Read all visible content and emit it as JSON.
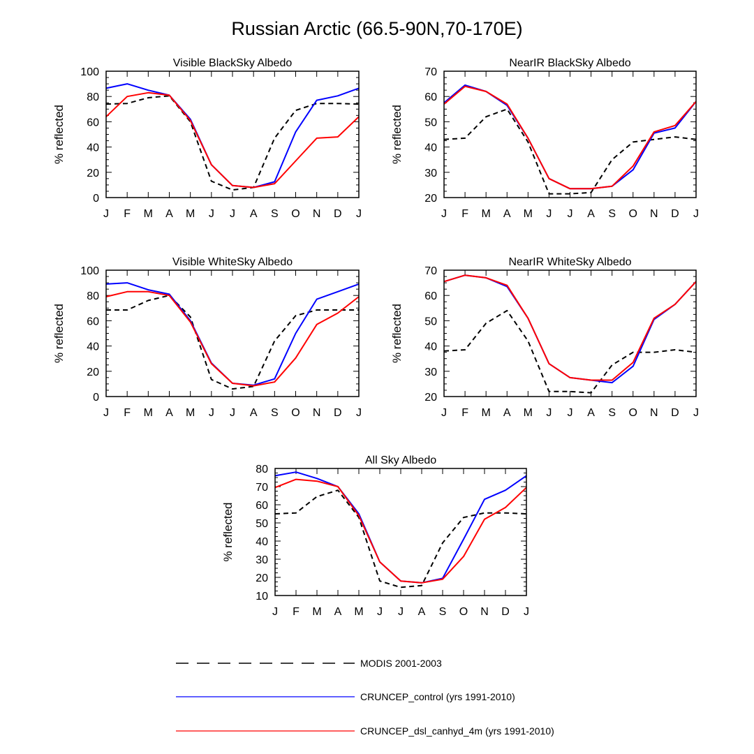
{
  "figure": {
    "title": "Russian Arctic (66.5-90N,70-170E)"
  },
  "legend": [
    {
      "label": "MODIS 2001-2003",
      "color": "#000000",
      "dash": true
    },
    {
      "label": "CRUNCEP_control (yrs 1991-2010)",
      "color": "#0000ff",
      "dash": false
    },
    {
      "label": "CRUNCEP_dsl_canhyd_4m (yrs 1991-2010)",
      "color": "#ff0000",
      "dash": false
    }
  ],
  "chart_data": [
    {
      "type": "line",
      "title": "Visible BlackSky Albedo",
      "ylabel": "% reflected",
      "categories": [
        "J",
        "F",
        "M",
        "A",
        "M",
        "J",
        "J",
        "A",
        "S",
        "O",
        "N",
        "D",
        "J"
      ],
      "ylim": [
        0,
        100
      ],
      "yticks": [
        0,
        20,
        40,
        60,
        80,
        100
      ],
      "series": [
        {
          "name": "MODIS 2001-2003",
          "values": [
            74,
            74.5,
            79,
            80.5,
            60,
            13,
            6,
            8,
            47,
            69,
            74.5,
            74.5,
            74
          ]
        },
        {
          "name": "CRUNCEP_control (yrs 1991-2010)",
          "values": [
            86.5,
            90,
            85,
            81,
            62,
            26,
            9.5,
            8,
            12.5,
            52,
            77,
            80.5,
            86.5
          ]
        },
        {
          "name": "CRUNCEP_dsl_canhyd_4m (yrs 1991-2010)",
          "values": [
            64,
            80,
            83,
            81,
            61,
            26,
            9.5,
            8,
            11,
            29,
            47,
            48,
            64
          ]
        }
      ]
    },
    {
      "type": "line",
      "title": "NearIR BlackSky Albedo",
      "ylabel": "% reflected",
      "categories": [
        "J",
        "F",
        "M",
        "A",
        "M",
        "J",
        "J",
        "A",
        "S",
        "O",
        "N",
        "D",
        "J"
      ],
      "ylim": [
        20,
        70
      ],
      "yticks": [
        20,
        30,
        40,
        50,
        60,
        70
      ],
      "series": [
        {
          "name": "MODIS 2001-2003",
          "values": [
            43,
            43.5,
            52,
            55,
            42,
            21.5,
            21.5,
            22,
            35,
            42,
            43,
            44,
            43
          ]
        },
        {
          "name": "CRUNCEP_control (yrs 1991-2010)",
          "values": [
            57.5,
            64.5,
            62,
            56.5,
            43.5,
            27.5,
            23.5,
            23.5,
            24.5,
            31,
            45.5,
            47.5,
            58
          ]
        },
        {
          "name": "CRUNCEP_dsl_canhyd_4m (yrs 1991-2010)",
          "values": [
            57,
            64,
            62,
            57,
            43.5,
            27.5,
            23.5,
            23.5,
            24.5,
            32.5,
            46,
            48.5,
            58
          ]
        }
      ]
    },
    {
      "type": "line",
      "title": "Visible WhiteSky Albedo",
      "ylabel": "% reflected",
      "categories": [
        "J",
        "F",
        "M",
        "A",
        "M",
        "J",
        "J",
        "A",
        "S",
        "O",
        "N",
        "D",
        "J"
      ],
      "ylim": [
        0,
        100
      ],
      "yticks": [
        0,
        20,
        40,
        60,
        80,
        100
      ],
      "series": [
        {
          "name": "MODIS 2001-2003",
          "values": [
            68.5,
            68.5,
            76,
            80,
            63,
            13.5,
            6,
            8,
            44,
            64,
            68.5,
            68.5,
            68.5
          ]
        },
        {
          "name": "CRUNCEP_control (yrs 1991-2010)",
          "values": [
            89,
            90,
            84.5,
            81,
            60,
            26.5,
            10.5,
            9,
            14,
            50,
            77,
            83,
            89
          ]
        },
        {
          "name": "CRUNCEP_dsl_canhyd_4m (yrs 1991-2010)",
          "values": [
            79,
            83,
            83,
            80,
            59,
            26,
            10.5,
            8.5,
            11.5,
            30.5,
            57,
            66,
            79
          ]
        }
      ]
    },
    {
      "type": "line",
      "title": "NearIR WhiteSky Albedo",
      "ylabel": "% reflected",
      "categories": [
        "J",
        "F",
        "M",
        "A",
        "M",
        "J",
        "J",
        "A",
        "S",
        "O",
        "N",
        "D",
        "J"
      ],
      "ylim": [
        20,
        70
      ],
      "yticks": [
        20,
        30,
        40,
        50,
        60,
        70
      ],
      "series": [
        {
          "name": "MODIS 2001-2003",
          "values": [
            38,
            38.5,
            49,
            54,
            42,
            22,
            22,
            21.5,
            32.5,
            37.5,
            37.5,
            38.5,
            37.5
          ]
        },
        {
          "name": "CRUNCEP_control (yrs 1991-2010)",
          "values": [
            65.5,
            68,
            67,
            63.5,
            51,
            33,
            27.5,
            26.5,
            25.5,
            32,
            50.5,
            56.5,
            65.5
          ]
        },
        {
          "name": "CRUNCEP_dsl_canhyd_4m (yrs 1991-2010)",
          "values": [
            65.5,
            68,
            67,
            64,
            51,
            33,
            27.5,
            26.5,
            26.5,
            33.5,
            51,
            56.5,
            65.5
          ]
        }
      ]
    },
    {
      "type": "line",
      "title": "All Sky Albedo",
      "ylabel": "% reflected",
      "categories": [
        "J",
        "F",
        "M",
        "A",
        "M",
        "J",
        "J",
        "A",
        "S",
        "O",
        "N",
        "D",
        "J"
      ],
      "ylim": [
        10,
        80
      ],
      "yticks": [
        10,
        20,
        30,
        40,
        50,
        60,
        70,
        80
      ],
      "series": [
        {
          "name": "MODIS 2001-2003",
          "values": [
            55,
            55.5,
            64.5,
            68,
            53,
            18,
            14.5,
            15.5,
            39,
            53,
            55.5,
            55.5,
            55
          ]
        },
        {
          "name": "CRUNCEP_control (yrs 1991-2010)",
          "values": [
            76,
            78,
            74.5,
            70,
            55,
            28.5,
            18,
            17,
            19.5,
            41,
            63,
            68,
            76
          ]
        },
        {
          "name": "CRUNCEP_dsl_canhyd_4m (yrs 1991-2010)",
          "values": [
            69.5,
            74,
            73,
            70,
            54,
            28.5,
            18,
            17,
            19,
            31.5,
            52,
            58.5,
            69.5
          ]
        }
      ]
    }
  ]
}
